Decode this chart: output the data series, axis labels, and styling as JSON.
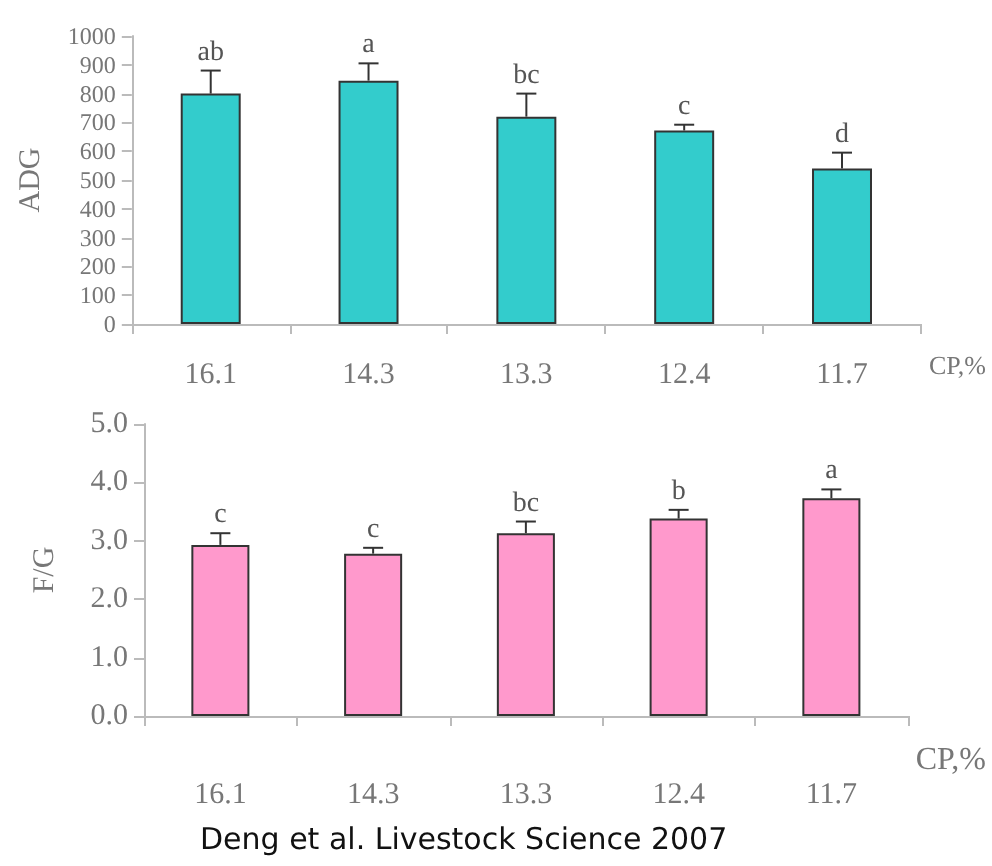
{
  "chart_data": [
    {
      "type": "bar",
      "ylabel": "ADG",
      "xlabel": "CP,%",
      "categories": [
        "16.1",
        "14.3",
        "13.3",
        "12.4",
        "11.7"
      ],
      "series": [
        {
          "color": "#33cccc",
          "values": [
            800,
            845,
            720,
            672,
            540
          ],
          "errors": [
            80,
            60,
            80,
            20,
            55
          ]
        }
      ],
      "ylim": [
        0,
        1000
      ],
      "yticks": [
        0,
        100,
        200,
        300,
        400,
        500,
        600,
        700,
        800,
        900,
        1000
      ],
      "grid": false,
      "annotations": [
        {
          "text": "ab",
          "x": "16.1",
          "y": 880
        },
        {
          "text": "a",
          "x": "14.3",
          "y": 905
        },
        {
          "text": "bc",
          "x": "13.3",
          "y": 800
        },
        {
          "text": "c",
          "x": "12.4",
          "y": 692
        },
        {
          "text": "d",
          "x": "11.7",
          "y": 595
        }
      ]
    },
    {
      "type": "bar",
      "ylabel": "F/G",
      "xlabel": "CP,%",
      "categories": [
        "16.1",
        "14.3",
        "13.3",
        "12.4",
        "11.7"
      ],
      "series": [
        {
          "color": "#ff99cc",
          "values": [
            2.93,
            2.78,
            3.13,
            3.38,
            3.73
          ],
          "errors": [
            0.2,
            0.1,
            0.2,
            0.15,
            0.15
          ]
        }
      ],
      "ylim": [
        0,
        5
      ],
      "yticks": [
        {
          "value": 0,
          "label": "0.0"
        },
        {
          "value": 1,
          "label": "1.0"
        },
        {
          "value": 2,
          "label": "2.0"
        },
        {
          "value": 3,
          "label": "3.0"
        },
        {
          "value": 4,
          "label": "4.0"
        },
        {
          "value": 5,
          "label": "5.0"
        }
      ],
      "grid": false,
      "annotations": [
        {
          "text": "c",
          "x": "16.1",
          "y": 3.13
        },
        {
          "text": "c",
          "x": "14.3",
          "y": 2.88
        },
        {
          "text": "bc",
          "x": "13.3",
          "y": 3.33
        },
        {
          "text": "b",
          "x": "12.4",
          "y": 3.53
        },
        {
          "text": "a",
          "x": "11.7",
          "y": 3.88
        },
        "Deng et al. Livestock Science 2007"
      ]
    }
  ]
}
